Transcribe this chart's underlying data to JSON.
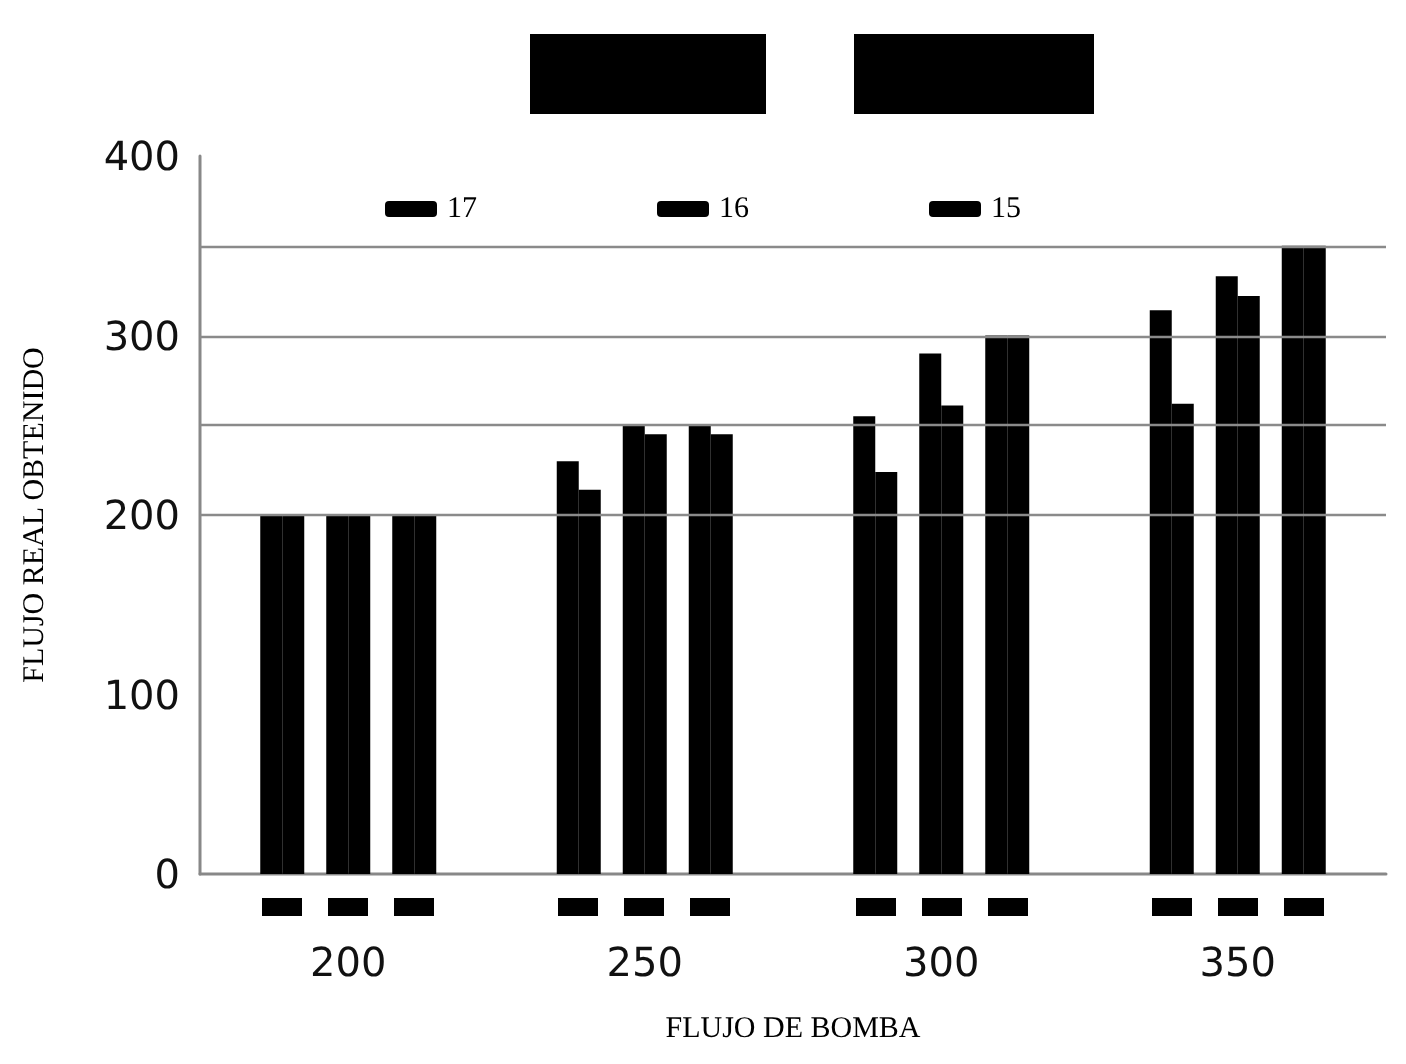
{
  "chart_data": {
    "type": "bar",
    "xlabel": "FLUJO DE BOMBA",
    "ylabel": "FLUJO REAL OBTENIDO",
    "categories": [
      "200",
      "250",
      "300",
      "350"
    ],
    "series": [
      {
        "name": "17",
        "color": "#000000",
        "values": [
          200,
          230,
          255,
          314
        ]
      },
      {
        "color": "#000000",
        "values": [
          200,
          214,
          224,
          262
        ]
      },
      {
        "name": "16",
        "color": "#000000",
        "values": [
          200,
          250,
          290,
          333
        ]
      },
      {
        "color": "#000000",
        "values": [
          200,
          245,
          261,
          322
        ]
      },
      {
        "name": "15",
        "color": "#000000",
        "values": [
          200,
          250,
          300,
          350
        ]
      },
      {
        "color": "#000000",
        "values": [
          200,
          245,
          300,
          350
        ]
      }
    ],
    "ylim": [
      0,
      400
    ],
    "yticks": [
      0,
      100,
      200,
      300,
      400
    ],
    "ref_lines": [
      {
        "axis": "y",
        "value": 200,
        "color": "#8a8a8a"
      },
      {
        "axis": "y",
        "value": 250,
        "color": "#8a8a8a"
      },
      {
        "axis": "y",
        "value": 300,
        "color": "#8a8a8a"
      },
      {
        "axis": "y",
        "value": 350,
        "color": "#8a8a8a"
      }
    ],
    "legend": "top"
  }
}
